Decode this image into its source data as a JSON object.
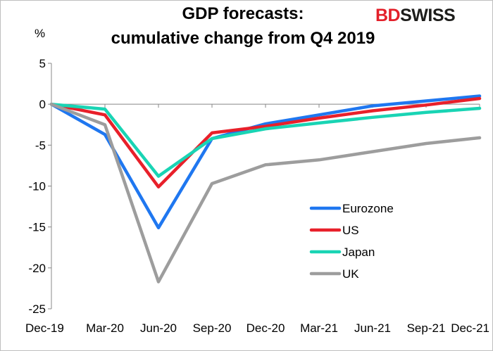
{
  "header": {
    "title_line1": "GDP forecasts:",
    "title_line2": "cumulative change from Q4 2019"
  },
  "logo": {
    "part1": "BD",
    "part2": "SWISS"
  },
  "chart_data": {
    "type": "line",
    "ylabel": "%",
    "categories": [
      "Dec-19",
      "Mar-20",
      "Jun-20",
      "Sep-20",
      "Dec-20",
      "Mar-21",
      "Jun-21",
      "Sep-21",
      "Dec-21"
    ],
    "ylim": [
      -25,
      5
    ],
    "yticks": [
      5,
      0,
      -5,
      -10,
      -15,
      -20,
      -25
    ],
    "grid": false,
    "legend_position": "lower-right",
    "series": [
      {
        "name": "Eurozone",
        "color": "#1f77f0",
        "values": [
          0,
          -3.7,
          -15.1,
          -4.2,
          -2.4,
          -1.3,
          -0.2,
          0.4,
          1.0
        ]
      },
      {
        "name": "US",
        "color": "#e8202a",
        "values": [
          0,
          -1.3,
          -10.1,
          -3.5,
          -2.7,
          -1.7,
          -0.8,
          -0.1,
          0.7
        ]
      },
      {
        "name": "Japan",
        "color": "#19d4b4",
        "values": [
          0,
          -0.6,
          -8.8,
          -4.2,
          -3.0,
          -2.3,
          -1.6,
          -1.0,
          -0.5
        ]
      },
      {
        "name": "UK",
        "color": "#9d9d9d",
        "values": [
          0,
          -2.5,
          -21.7,
          -9.7,
          -7.4,
          -6.8,
          -5.8,
          -4.8,
          -4.1
        ]
      }
    ]
  }
}
